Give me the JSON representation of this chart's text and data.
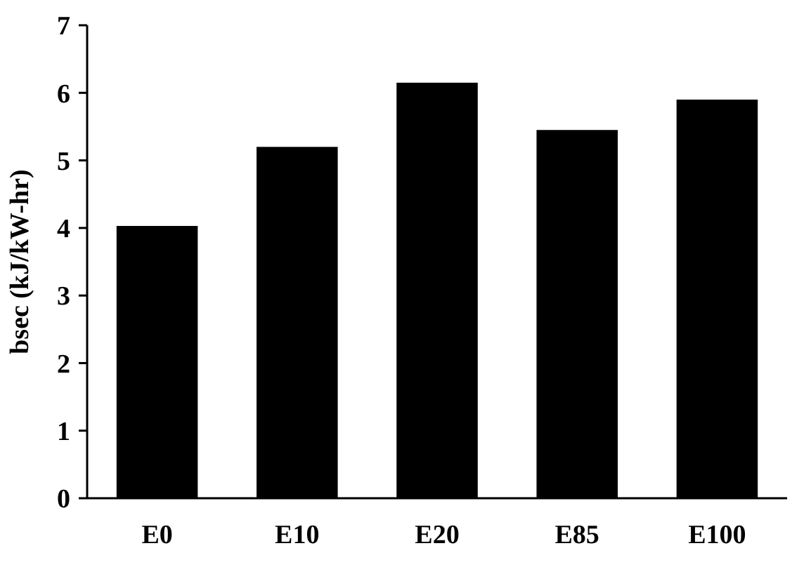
{
  "chart_data": {
    "type": "bar",
    "ylabel": "bsec (kJ/kW-hr)",
    "categories": [
      "E0",
      "E10",
      "E20",
      "E85",
      "E100"
    ],
    "values": [
      4.03,
      5.2,
      6.15,
      5.45,
      5.9
    ],
    "color": "#000000",
    "ylim": [
      0,
      7
    ],
    "yticks": [
      0,
      1,
      2,
      3,
      4,
      5,
      6,
      7
    ],
    "grid": false
  }
}
